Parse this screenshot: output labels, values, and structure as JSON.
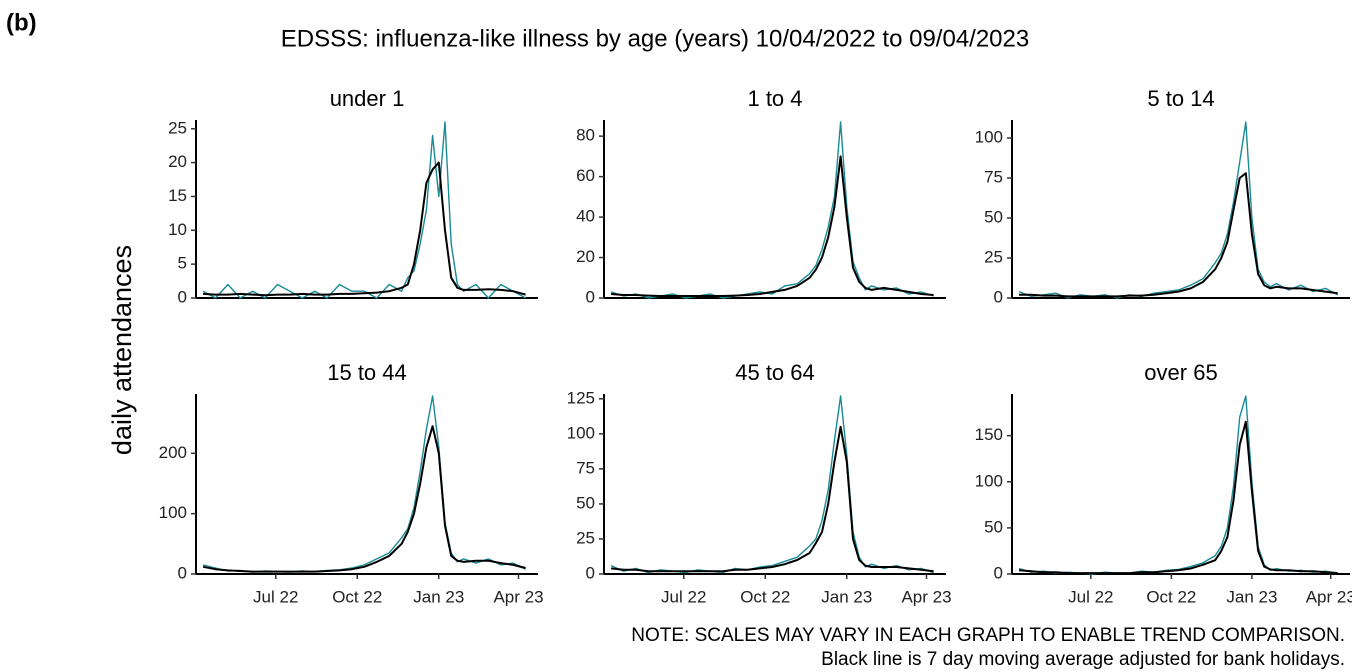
{
  "panel_label": "(b)",
  "title": "EDSSS: influenza-like illness by age (years) 10/04/2022 to 09/04/2023",
  "ylabel": "daily attendances",
  "notes": [
    "NOTE: SCALES MAY VARY IN EACH GRAPH TO ENABLE TREND COMPARISON.",
    "Black line is 7 day moving average adjusted for bank holidays."
  ],
  "chart_data": [
    {
      "type": "line",
      "title": "under 1",
      "x": [
        0,
        14,
        28,
        42,
        56,
        70,
        84,
        98,
        112,
        126,
        140,
        154,
        168,
        182,
        196,
        210,
        224,
        231,
        238,
        245,
        252,
        259,
        266,
        273,
        280,
        287,
        294,
        308,
        322,
        336,
        350,
        364
      ],
      "xlim": [
        -8,
        378
      ],
      "ylim": [
        0,
        26
      ],
      "yticks": [
        0,
        5,
        10,
        15,
        20,
        25
      ],
      "series": [
        {
          "color": "#1a8a96",
          "values": [
            1,
            0,
            2,
            0,
            1,
            0,
            2,
            1,
            0,
            1,
            0,
            2,
            1,
            1,
            0,
            2,
            1,
            3,
            4,
            8,
            13,
            24,
            15,
            26,
            8,
            2,
            1,
            2,
            0,
            2,
            1,
            0
          ]
        },
        {
          "color": "#000000",
          "values": [
            0.6,
            0.5,
            0.5,
            0.6,
            0.5,
            0.4,
            0.5,
            0.5,
            0.6,
            0.5,
            0.5,
            0.6,
            0.6,
            0.7,
            0.8,
            1,
            1.5,
            2,
            5,
            10,
            17,
            19,
            20,
            10,
            3,
            1.5,
            1.2,
            1.2,
            1.3,
            1.2,
            1,
            0.5
          ]
        }
      ]
    },
    {
      "type": "line",
      "title": "1 to 4",
      "x": [
        0,
        14,
        28,
        42,
        56,
        70,
        84,
        98,
        112,
        126,
        140,
        154,
        168,
        182,
        196,
        210,
        224,
        231,
        238,
        245,
        252,
        259,
        266,
        273,
        280,
        287,
        294,
        308,
        322,
        336,
        350,
        364
      ],
      "xlim": [
        -8,
        378
      ],
      "ylim": [
        0,
        87
      ],
      "yticks": [
        0,
        20,
        40,
        60,
        80
      ],
      "series": [
        {
          "color": "#1a8a96",
          "values": [
            3,
            1,
            2,
            0,
            1,
            2,
            0,
            1,
            2,
            0,
            1,
            2,
            3,
            2,
            6,
            7,
            12,
            16,
            24,
            35,
            50,
            87,
            45,
            18,
            10,
            4,
            6,
            4,
            5,
            2,
            3,
            1
          ]
        },
        {
          "color": "#000000",
          "values": [
            2,
            1.5,
            1.5,
            1.2,
            1,
            1,
            1,
            1,
            1,
            1,
            1.2,
            1.5,
            2,
            3,
            4,
            6,
            10,
            14,
            20,
            30,
            45,
            70,
            40,
            15,
            8,
            5,
            4,
            5,
            4,
            3,
            2,
            1.5
          ]
        }
      ]
    },
    {
      "type": "line",
      "title": "5 to 14",
      "x": [
        0,
        14,
        28,
        42,
        56,
        70,
        84,
        98,
        112,
        126,
        140,
        154,
        168,
        182,
        196,
        210,
        224,
        231,
        238,
        245,
        252,
        259,
        266,
        273,
        280,
        287,
        294,
        308,
        322,
        336,
        350,
        364
      ],
      "xlim": [
        -8,
        378
      ],
      "ylim": [
        0,
        110
      ],
      "yticks": [
        0,
        25,
        50,
        75,
        100
      ],
      "series": [
        {
          "color": "#1a8a96",
          "values": [
            4,
            1,
            2,
            3,
            0,
            2,
            1,
            2,
            0,
            2,
            1,
            3,
            4,
            5,
            8,
            12,
            22,
            28,
            40,
            60,
            85,
            110,
            50,
            18,
            10,
            7,
            9,
            5,
            8,
            4,
            6,
            2
          ]
        },
        {
          "color": "#000000",
          "values": [
            2,
            2,
            1.5,
            1.5,
            1,
            1,
            1,
            1,
            1,
            1.5,
            1.5,
            2,
            3,
            4,
            6,
            10,
            18,
            25,
            35,
            55,
            75,
            78,
            40,
            15,
            8,
            6,
            7,
            6,
            6,
            5,
            4,
            3
          ]
        }
      ]
    },
    {
      "type": "line",
      "title": "15 to 44",
      "x": [
        0,
        14,
        28,
        42,
        56,
        70,
        84,
        98,
        112,
        126,
        140,
        154,
        168,
        182,
        196,
        210,
        224,
        231,
        238,
        245,
        252,
        259,
        266,
        273,
        280,
        287,
        294,
        308,
        322,
        336,
        350,
        364
      ],
      "xlim": [
        -8,
        378
      ],
      "ylim": [
        0,
        295
      ],
      "yticks": [
        0,
        100,
        200
      ],
      "xticks": [
        {
          "value": 82,
          "label": "Jul 22"
        },
        {
          "value": 174,
          "label": "Oct 22"
        },
        {
          "value": 266,
          "label": "Jan 23"
        },
        {
          "value": 356,
          "label": "Apr 23"
        }
      ],
      "series": [
        {
          "color": "#1a8a96",
          "values": [
            15,
            10,
            5,
            6,
            3,
            5,
            4,
            3,
            5,
            4,
            6,
            7,
            10,
            15,
            25,
            35,
            60,
            75,
            110,
            170,
            240,
            295,
            210,
            85,
            35,
            20,
            25,
            18,
            25,
            15,
            18,
            8
          ]
        },
        {
          "color": "#000000",
          "values": [
            12,
            8,
            6,
            5,
            4,
            4,
            4,
            4,
            4,
            4,
            5,
            6,
            8,
            12,
            20,
            30,
            50,
            70,
            100,
            150,
            210,
            245,
            200,
            80,
            30,
            22,
            20,
            22,
            22,
            18,
            15,
            10
          ]
        }
      ]
    },
    {
      "type": "line",
      "title": "45 to 64",
      "x": [
        0,
        14,
        28,
        42,
        56,
        70,
        84,
        98,
        112,
        126,
        140,
        154,
        168,
        182,
        196,
        210,
        224,
        231,
        238,
        245,
        252,
        259,
        266,
        273,
        280,
        287,
        294,
        308,
        322,
        336,
        350,
        364
      ],
      "xlim": [
        -8,
        378
      ],
      "ylim": [
        0,
        127
      ],
      "yticks": [
        0,
        25,
        50,
        75,
        100,
        125
      ],
      "xticks": [
        {
          "value": 82,
          "label": "Jul 22"
        },
        {
          "value": 174,
          "label": "Oct 22"
        },
        {
          "value": 266,
          "label": "Jan 23"
        },
        {
          "value": 356,
          "label": "Apr 23"
        }
      ],
      "series": [
        {
          "color": "#1a8a96",
          "values": [
            6,
            2,
            4,
            1,
            3,
            2,
            1,
            3,
            2,
            1,
            4,
            3,
            5,
            6,
            9,
            12,
            20,
            25,
            38,
            60,
            95,
            127,
            85,
            30,
            12,
            5,
            7,
            4,
            6,
            3,
            4,
            1
          ]
        },
        {
          "color": "#000000",
          "values": [
            4,
            3,
            3,
            2,
            2,
            2,
            2,
            2,
            2,
            2,
            3,
            3,
            4,
            5,
            7,
            10,
            15,
            22,
            30,
            50,
            80,
            105,
            80,
            25,
            10,
            6,
            5,
            5,
            5,
            4,
            3,
            2
          ]
        }
      ]
    },
    {
      "type": "line",
      "title": "over 65",
      "x": [
        0,
        14,
        28,
        42,
        56,
        70,
        84,
        98,
        112,
        126,
        140,
        154,
        168,
        182,
        196,
        210,
        224,
        231,
        238,
        245,
        252,
        259,
        266,
        273,
        280,
        287,
        294,
        308,
        322,
        336,
        350,
        364
      ],
      "xlim": [
        -8,
        378
      ],
      "ylim": [
        0,
        193
      ],
      "yticks": [
        0,
        50,
        100,
        150
      ],
      "xticks": [
        {
          "value": 82,
          "label": "Jul 22"
        },
        {
          "value": 174,
          "label": "Oct 22"
        },
        {
          "value": 266,
          "label": "Jan 23"
        },
        {
          "value": 356,
          "label": "Apr 23"
        }
      ],
      "series": [
        {
          "color": "#1a8a96",
          "values": [
            6,
            2,
            3,
            1,
            2,
            1,
            0,
            2,
            1,
            1,
            3,
            2,
            4,
            5,
            8,
            12,
            20,
            30,
            50,
            95,
            170,
            193,
            100,
            30,
            10,
            4,
            6,
            3,
            4,
            2,
            3,
            1
          ]
        },
        {
          "color": "#000000",
          "values": [
            4,
            3,
            2,
            2,
            1,
            1,
            1,
            1,
            1,
            1,
            2,
            2,
            3,
            4,
            6,
            10,
            15,
            25,
            40,
            80,
            140,
            165,
            90,
            25,
            8,
            5,
            4,
            4,
            3,
            3,
            2,
            1
          ]
        }
      ]
    }
  ]
}
